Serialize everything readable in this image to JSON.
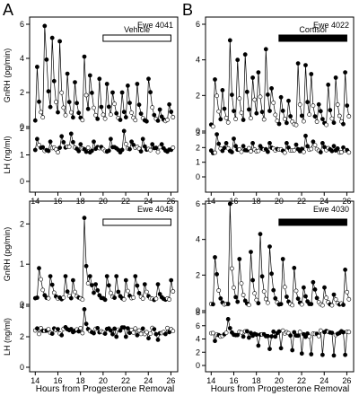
{
  "figure": {
    "panel_letters": [
      "A",
      "B"
    ],
    "x_axis_title": "Hours from Progesterone Removal"
  },
  "chart_data": [
    {
      "panel": "A-top",
      "type": "line",
      "title": "Ewe 4041",
      "treatment": "Vehicle",
      "treatment_fill": "open",
      "treatment_range": [
        20,
        26
      ],
      "x_ticks": [
        "14",
        "16",
        "18",
        "20",
        "22",
        "24",
        "26"
      ],
      "xlim": [
        13.5,
        26.6
      ],
      "gnrh": {
        "ylabel": "GnRH (pg/min)",
        "ylim": [
          0,
          6
        ],
        "yticks": [
          "0",
          "2",
          "4",
          "6"
        ],
        "peaks": [
          [
            14.1,
            3.5
          ],
          [
            14.9,
            5.9
          ],
          [
            15.5,
            5.2
          ],
          [
            16.1,
            5.0
          ],
          [
            16.8,
            3.1
          ],
          [
            17.5,
            2.6
          ],
          [
            18.3,
            4.1
          ],
          [
            18.9,
            3.0
          ],
          [
            19.6,
            2.8
          ],
          [
            20.3,
            2.5
          ],
          [
            20.9,
            2.0
          ],
          [
            21.6,
            2.0
          ],
          [
            22.2,
            2.4
          ],
          [
            23.0,
            2.5
          ],
          [
            24.1,
            2.8
          ],
          [
            25.0,
            1.0
          ],
          [
            25.9,
            1.3
          ]
        ]
      },
      "lh": {
        "ylabel": "LH (ng/ml)",
        "ylim": [
          0,
          2
        ],
        "yticks": [
          "0",
          "1",
          "2"
        ],
        "peaks": [
          [
            14.2,
            1.6
          ],
          [
            15.3,
            1.5
          ],
          [
            16.4,
            1.7
          ],
          [
            17.2,
            1.8
          ],
          [
            18.0,
            1.4
          ],
          [
            19.1,
            1.5
          ],
          [
            19.9,
            1.3
          ],
          [
            20.6,
            1.6
          ],
          [
            21.8,
            1.9
          ],
          [
            22.6,
            1.5
          ],
          [
            23.5,
            1.6
          ],
          [
            24.3,
            1.4
          ],
          [
            25.2,
            1.4
          ],
          [
            25.9,
            1.2
          ]
        ]
      }
    },
    {
      "panel": "B-top",
      "type": "line",
      "title": "Ewe 4022",
      "treatment": "Cortisol",
      "treatment_fill": "filled",
      "treatment_range": [
        20,
        26
      ],
      "x_ticks": [
        "14",
        "16",
        "18",
        "20",
        "22",
        "24",
        "26"
      ],
      "xlim": [
        13.5,
        26.6
      ],
      "gnrh": {
        "ylabel": "",
        "ylim": [
          0,
          6
        ],
        "yticks": [
          "0",
          "2",
          "4",
          "6"
        ],
        "peaks": [
          [
            14.4,
            2.9
          ],
          [
            15.0,
            2.3
          ],
          [
            15.6,
            5.1
          ],
          [
            16.3,
            4.0
          ],
          [
            17.0,
            4.3
          ],
          [
            17.7,
            3.0
          ],
          [
            18.2,
            3.3
          ],
          [
            18.8,
            4.6
          ],
          [
            19.4,
            2.4
          ],
          [
            20.2,
            1.9
          ],
          [
            20.8,
            1.7
          ],
          [
            21.6,
            3.8
          ],
          [
            22.3,
            3.7
          ],
          [
            22.8,
            3.2
          ],
          [
            23.6,
            1.5
          ],
          [
            24.3,
            2.6
          ],
          [
            25.0,
            3.0
          ],
          [
            25.8,
            3.3
          ]
        ]
      },
      "lh": {
        "ylabel": "",
        "ylim": [
          0,
          3
        ],
        "yticks": [
          "0",
          "1",
          "2",
          "3"
        ],
        "peaks": [
          [
            14.5,
            2.9
          ],
          [
            15.3,
            2.3
          ],
          [
            16.0,
            2.6
          ],
          [
            16.8,
            2.1
          ],
          [
            17.6,
            2.3
          ],
          [
            18.4,
            2.1
          ],
          [
            19.2,
            2.3
          ],
          [
            19.9,
            1.9
          ],
          [
            20.7,
            2.3
          ],
          [
            21.5,
            2.2
          ],
          [
            22.3,
            2.8
          ],
          [
            23.1,
            2.4
          ],
          [
            23.9,
            2.3
          ],
          [
            24.8,
            2.1
          ],
          [
            25.7,
            2.0
          ]
        ]
      }
    },
    {
      "panel": "A-bottom",
      "type": "line",
      "title": "Ewe 4048",
      "treatment": "",
      "treatment_fill": "open",
      "treatment_range": [
        20,
        26
      ],
      "x_ticks": [
        "14",
        "16",
        "18",
        "20",
        "22",
        "24",
        "26"
      ],
      "xlim": [
        13.5,
        26.6
      ],
      "gnrh": {
        "ylabel": "GnRH (pg/min)",
        "ylim": [
          0,
          2.5
        ],
        "yticks": [
          "0",
          "1",
          "2"
        ],
        "peaks": [
          [
            14.4,
            0.9
          ],
          [
            15.4,
            0.7
          ],
          [
            16.6,
            0.7
          ],
          [
            17.3,
            0.6
          ],
          [
            18.3,
            2.15
          ],
          [
            18.9,
            0.7
          ],
          [
            19.4,
            0.5
          ],
          [
            20.4,
            0.7
          ],
          [
            21.1,
            0.7
          ],
          [
            22.0,
            0.6
          ],
          [
            22.9,
            0.7
          ],
          [
            23.7,
            0.5
          ],
          [
            24.8,
            0.5
          ],
          [
            26.0,
            0.6
          ]
        ]
      },
      "lh": {
        "ylabel": "LH (ng/ml)",
        "ylim": [
          0,
          4
        ],
        "yticks": [
          "0",
          "2",
          "4"
        ],
        "peaks": [
          [
            15.0,
            2.4
          ],
          [
            16.3,
            2.1
          ],
          [
            17.4,
            2.3
          ],
          [
            18.3,
            3.8
          ],
          [
            19.0,
            2.3
          ],
          [
            20.1,
            2.2
          ],
          [
            21.1,
            2.0
          ],
          [
            22.0,
            2.0
          ],
          [
            23.0,
            2.1
          ],
          [
            24.0,
            1.9
          ],
          [
            24.8,
            1.8
          ],
          [
            25.8,
            2.3
          ]
        ]
      }
    },
    {
      "panel": "B-bottom",
      "type": "line",
      "title": "Ewe 4030",
      "treatment": "",
      "treatment_fill": "filled",
      "treatment_range": [
        20,
        26
      ],
      "x_ticks": [
        "14",
        "16",
        "18",
        "20",
        "22",
        "24",
        "26"
      ],
      "xlim": [
        13.5,
        26.6
      ],
      "gnrh": {
        "ylabel": "",
        "ylim": [
          0,
          6
        ],
        "yticks": [
          "0",
          "2",
          "4",
          "6"
        ],
        "peaks": [
          [
            14.4,
            3.0
          ],
          [
            15.6,
            6.0
          ],
          [
            16.5,
            2.9
          ],
          [
            17.5,
            3.3
          ],
          [
            18.3,
            4.3
          ],
          [
            19.2,
            3.6
          ],
          [
            20.3,
            2.9
          ],
          [
            21.3,
            2.4
          ],
          [
            22.2,
            1.3
          ],
          [
            23.1,
            1.6
          ],
          [
            24.0,
            1.3
          ],
          [
            24.9,
            0.9
          ],
          [
            25.8,
            2.3
          ]
        ]
      },
      "lh": {
        "ylabel": "",
        "ylim": [
          0,
          8
        ],
        "yticks": [
          "0",
          "2",
          "4",
          "6",
          "8"
        ],
        "peaks": [
          [
            14.4,
            3.7
          ],
          [
            15.5,
            7.0
          ],
          [
            16.3,
            4.6
          ],
          [
            17.3,
            4.2
          ],
          [
            18.2,
            3.0
          ],
          [
            19.1,
            2.5
          ],
          [
            20.2,
            2.6
          ],
          [
            21.2,
            2.3
          ],
          [
            22.0,
            1.8
          ],
          [
            22.9,
            1.7
          ],
          [
            23.9,
            1.6
          ],
          [
            24.9,
            1.5
          ],
          [
            25.8,
            1.6
          ]
        ]
      }
    }
  ]
}
